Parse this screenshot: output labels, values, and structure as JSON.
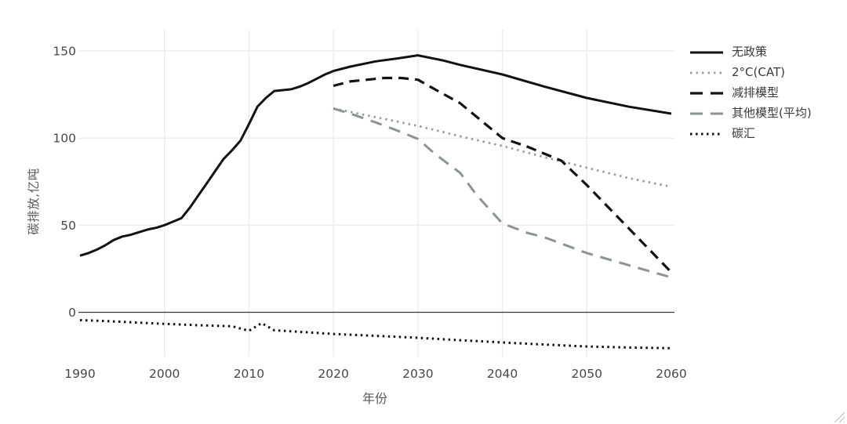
{
  "chart_data": {
    "type": "line",
    "title": "",
    "xlabel": "年份",
    "ylabel": "碳排放,亿吨",
    "x_range": [
      1990,
      2060
    ],
    "y_range": [
      -25,
      163
    ],
    "x_ticks": [
      1990,
      2000,
      2010,
      2020,
      2030,
      2040,
      2050,
      2060
    ],
    "y_ticks": [
      0,
      50,
      100,
      150
    ],
    "grid_vlines": [
      2000,
      2010,
      2020,
      2030,
      2040,
      2050
    ],
    "grid_hlines": [
      50,
      100,
      150
    ],
    "zero_line": 0,
    "grid": true,
    "legend_position": "right",
    "colors": {
      "background": "#ffffff",
      "black_series": "#121212",
      "gray_series": "#8a9494",
      "gray_dotted_series": "#96a0a0",
      "grid": "#ececec",
      "zero_line": "#3a3a3a",
      "tick_text": "#474747",
      "axis_title_text": "#595959",
      "legend_text": "#3a3a3a"
    },
    "series": [
      {
        "name": "无政策",
        "color": "#121212",
        "line_style": "solid",
        "width": 3,
        "points": [
          [
            1990,
            32.5
          ],
          [
            1991,
            34
          ],
          [
            1992,
            36
          ],
          [
            1993,
            38.5
          ],
          [
            1994,
            41.5
          ],
          [
            1995,
            43.5
          ],
          [
            1996,
            44.5
          ],
          [
            1997,
            46
          ],
          [
            1998,
            47.5
          ],
          [
            1999,
            48.5
          ],
          [
            2000,
            50
          ],
          [
            2001,
            52
          ],
          [
            2002,
            54
          ],
          [
            2003,
            60
          ],
          [
            2004,
            67
          ],
          [
            2005,
            74
          ],
          [
            2006,
            81
          ],
          [
            2007,
            88
          ],
          [
            2008,
            93
          ],
          [
            2009,
            98.5
          ],
          [
            2010,
            108
          ],
          [
            2011,
            118
          ],
          [
            2012,
            123
          ],
          [
            2013,
            127
          ],
          [
            2014,
            127.5
          ],
          [
            2015,
            128
          ],
          [
            2016,
            129.5
          ],
          [
            2017,
            131.5
          ],
          [
            2018,
            134
          ],
          [
            2019,
            136.5
          ],
          [
            2020,
            138.5
          ],
          [
            2022,
            141
          ],
          [
            2025,
            144
          ],
          [
            2028,
            146
          ],
          [
            2030,
            147.5
          ],
          [
            2033,
            144.5
          ],
          [
            2035,
            142
          ],
          [
            2040,
            136.5
          ],
          [
            2045,
            129.5
          ],
          [
            2050,
            123
          ],
          [
            2055,
            118
          ],
          [
            2060,
            114
          ]
        ]
      },
      {
        "name": "2°C(CAT)",
        "color": "#96a0a0",
        "line_style": "dotted",
        "width": 2.8,
        "points": [
          [
            2020,
            117
          ],
          [
            2025,
            112
          ],
          [
            2030,
            107
          ],
          [
            2035,
            101
          ],
          [
            2040,
            95.5
          ],
          [
            2045,
            89
          ],
          [
            2050,
            83
          ],
          [
            2055,
            77
          ],
          [
            2060,
            72
          ]
        ]
      },
      {
        "name": "减排模型",
        "color": "#121212",
        "line_style": "dashed",
        "width": 3.2,
        "points": [
          [
            2020,
            130
          ],
          [
            2022,
            132.5
          ],
          [
            2024,
            133.5
          ],
          [
            2026,
            134.5
          ],
          [
            2028,
            134.5
          ],
          [
            2030,
            133.5
          ],
          [
            2032,
            128
          ],
          [
            2035,
            120
          ],
          [
            2040,
            100
          ],
          [
            2043,
            95
          ],
          [
            2047,
            87
          ],
          [
            2050,
            73
          ],
          [
            2055,
            48
          ],
          [
            2060,
            23
          ]
        ]
      },
      {
        "name": "其他模型(平均)",
        "color": "#8a9494",
        "line_style": "dashed-long",
        "width": 3,
        "points": [
          [
            2020,
            117
          ],
          [
            2022,
            114
          ],
          [
            2025,
            109
          ],
          [
            2028,
            103.5
          ],
          [
            2030,
            99.5
          ],
          [
            2032,
            91
          ],
          [
            2035,
            80
          ],
          [
            2037,
            67
          ],
          [
            2040,
            51
          ],
          [
            2043,
            45.5
          ],
          [
            2045,
            43
          ],
          [
            2050,
            34
          ],
          [
            2055,
            27
          ],
          [
            2060,
            20
          ]
        ]
      },
      {
        "name": "碳汇",
        "color": "#121212",
        "line_style": "dense-dotted",
        "width": 3,
        "points": [
          [
            1990,
            -4.5
          ],
          [
            1993,
            -5
          ],
          [
            1996,
            -5.7
          ],
          [
            2000,
            -6.6
          ],
          [
            2004,
            -7.4
          ],
          [
            2008,
            -8
          ],
          [
            2010,
            -10.6
          ],
          [
            2011.5,
            -6.2
          ],
          [
            2013,
            -10.3
          ],
          [
            2016,
            -11.2
          ],
          [
            2020,
            -12.4
          ],
          [
            2025,
            -13.5
          ],
          [
            2030,
            -14.6
          ],
          [
            2035,
            -16
          ],
          [
            2040,
            -17.3
          ],
          [
            2045,
            -18.5
          ],
          [
            2050,
            -19.6
          ],
          [
            2055,
            -20.2
          ],
          [
            2060,
            -20.6
          ]
        ]
      }
    ]
  }
}
